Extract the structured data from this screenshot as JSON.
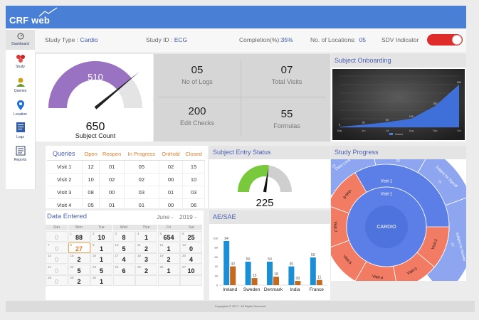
{
  "app": {
    "title": "CRF web"
  },
  "sidebar": {
    "items": [
      {
        "label": "Dashboard",
        "icon": "dashboard-icon"
      },
      {
        "label": "Study",
        "icon": "study-icon"
      },
      {
        "label": "Queries",
        "icon": "queries-icon"
      },
      {
        "label": "Location",
        "icon": "location-pin-icon"
      },
      {
        "label": "Logs",
        "icon": "logs-icon"
      },
      {
        "label": "Reports",
        "icon": "reports-icon"
      }
    ]
  },
  "topbar": {
    "study_type_label": "Study Type :",
    "study_type_value": "Cardio",
    "study_id_label": "Study ID :",
    "study_id_value": "ECG",
    "completion_label": "Completion(%):",
    "completion_value": "35%",
    "locations_label": "No. of Locations:",
    "locations_value": "05",
    "sdv_label": "SDV Indicator",
    "sdv_on": true
  },
  "gauge_subject": {
    "value": "510",
    "total": "650",
    "label": "Subject Count",
    "fraction": 0.78,
    "fill_color": "#9a72c2",
    "rest_color": "#e4e4e4"
  },
  "stats": [
    {
      "value": "05",
      "label": "No of Logs"
    },
    {
      "value": "07",
      "label": "Total Visits"
    },
    {
      "value": "200",
      "label": "Edit Checks"
    },
    {
      "value": "55",
      "label": "Formulas"
    }
  ],
  "onboarding": {
    "title": "Subject Onboarding",
    "legend": "Count",
    "chart_data": {
      "type": "area",
      "categories": [
        "May",
        "Jun",
        "Jul",
        "Aug",
        "Sep",
        "Oct"
      ],
      "values": [
        5,
        30,
        60,
        100,
        250,
        500
      ],
      "ylim": [
        0,
        600
      ]
    }
  },
  "queries": {
    "title": "Queries",
    "columns": [
      "Open",
      "Reopen",
      "In Progress",
      "OnHold",
      "Closed"
    ],
    "rows": [
      {
        "name": "Visit 1",
        "cells": [
          "12",
          "01",
          "05",
          "02",
          "15"
        ]
      },
      {
        "name": "Visit 2",
        "cells": [
          "10",
          "02",
          "02",
          "00",
          "10"
        ]
      },
      {
        "name": "Visit 3",
        "cells": [
          "08",
          "00",
          "03",
          "01",
          "03"
        ]
      },
      {
        "name": "Visit 4",
        "cells": [
          "05",
          "01",
          "01",
          "00",
          "06"
        ]
      }
    ]
  },
  "entry_status": {
    "title": "Subject Entry Status",
    "value": "225",
    "fraction": 0.55,
    "fill_color": "#78c93b",
    "rest_color": "#cfcfcf"
  },
  "progress": {
    "title": "Study Progress",
    "center": "CARDIO",
    "inner_label": "Visit-1",
    "visits": [
      "Visit-7",
      "Visit-6",
      "Visit-5",
      "Visit-4",
      "Visit-3",
      "Visit-2"
    ],
    "outer": [
      "Data Lock",
      "Signoff",
      "Subject for Signoff",
      "Subject for Review"
    ],
    "outer_values": [
      "18",
      "20",
      "21",
      "10"
    ],
    "blue_color": "#5b7fe6",
    "light_color": "#8ea6f0",
    "salmon_color": "#f27b64"
  },
  "calendar": {
    "title": "Data Entered",
    "month": "June -",
    "year": "2019 -",
    "weekdays": [
      "Sun",
      "Mon",
      "Tue",
      "Wed",
      "Thur",
      "Fri",
      "Sat"
    ],
    "weeks": [
      [
        {
          "d": "",
          "c": "0"
        },
        {
          "d": "1",
          "c": "88"
        },
        {
          "d": "2",
          "c": "10"
        },
        {
          "d": "3",
          "c": "8"
        },
        {
          "d": "4",
          "c": "1"
        },
        {
          "d": "5",
          "c": "654"
        },
        {
          "d": "6",
          "c": "25"
        }
      ],
      [
        {
          "d": "7",
          "c": "0"
        },
        {
          "d": "8",
          "c": "27"
        },
        {
          "d": "9",
          "c": "1"
        },
        {
          "d": "10",
          "c": "5"
        },
        {
          "d": "11",
          "c": "2"
        },
        {
          "d": "12",
          "c": "1"
        },
        {
          "d": "13",
          "c": "0"
        }
      ],
      [
        {
          "d": "14",
          "c": "0"
        },
        {
          "d": "15",
          "c": "2"
        },
        {
          "d": "16",
          "c": "1"
        },
        {
          "d": "17",
          "c": "4"
        },
        {
          "d": "18",
          "c": "3"
        },
        {
          "d": "19",
          "c": "2"
        },
        {
          "d": "20",
          "c": "4"
        }
      ],
      [
        {
          "d": "21",
          "c": "0"
        },
        {
          "d": "22",
          "c": "5"
        },
        {
          "d": "23",
          "c": "5"
        },
        {
          "d": "24",
          "c": "6"
        },
        {
          "d": "25",
          "c": "2"
        },
        {
          "d": "26",
          "c": "1"
        },
        {
          "d": "27",
          "c": "10"
        }
      ],
      [
        {
          "d": "28",
          "c": "0"
        },
        {
          "d": "29",
          "c": "2"
        },
        {
          "d": "30",
          "c": "1"
        },
        {
          "d": "",
          "c": ""
        },
        {
          "d": "",
          "c": ""
        },
        {
          "d": "",
          "c": ""
        },
        {
          "d": "",
          "c": ""
        }
      ]
    ],
    "highlight": [
      1,
      1
    ]
  },
  "aesae": {
    "title": "AE/SAE",
    "chart_data": {
      "type": "bar",
      "categories": [
        "Ireland",
        "Sweden",
        "Denmark",
        "India",
        "France"
      ],
      "series": [
        {
          "values": [
            94,
            50,
            50,
            40,
            59
          ],
          "color": "#1a8fd6"
        },
        {
          "values": [
            40,
            15,
            18,
            9,
            11
          ],
          "color": "#c46a1f"
        }
      ],
      "ylim": [
        0,
        100
      ],
      "yticks": [
        0,
        20,
        40,
        60,
        80,
        100
      ]
    },
    "labels": [
      "94",
      "40",
      "50",
      "15",
      "50",
      "18",
      "40",
      "09",
      "59",
      "11"
    ]
  },
  "footer": {
    "text": "Copyrights © 2017 - All Rights Reserved"
  }
}
